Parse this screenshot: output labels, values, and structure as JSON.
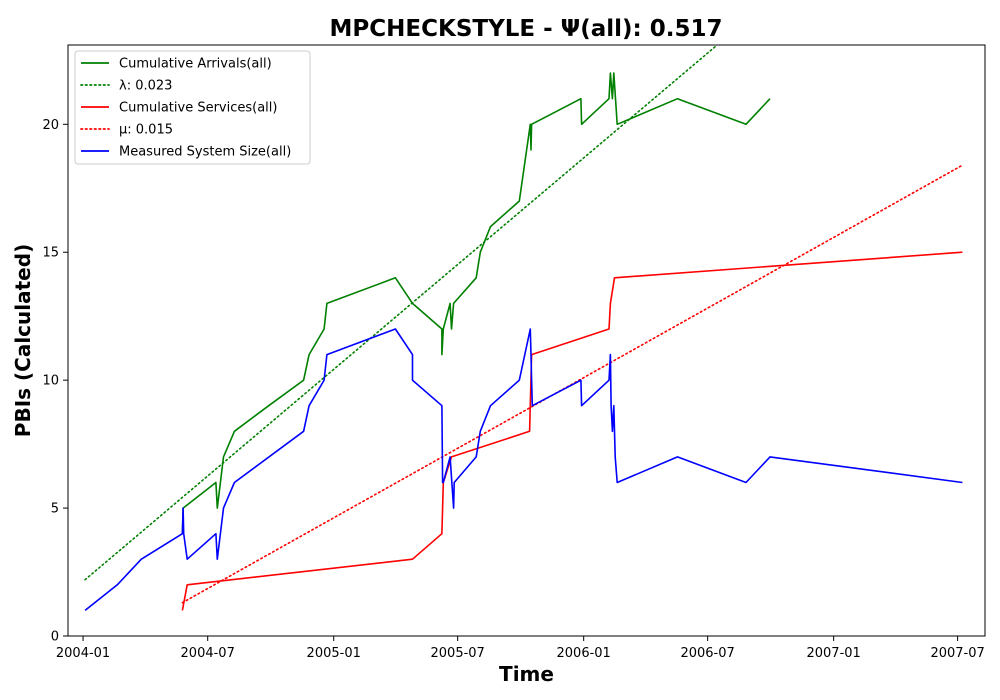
{
  "chart_data": {
    "type": "line",
    "title": "MPCHECKSTYLE -  Ψ(all): 0.517",
    "xlabel": "Time",
    "ylabel": "PBIs (Calculated)",
    "xlim": [
      "2003-12-10",
      "2007-08-10"
    ],
    "ylim": [
      0,
      23.1
    ],
    "grid": false,
    "legend_position": "top-left",
    "x_ticks": [
      "2004-01",
      "2004-07",
      "2005-01",
      "2005-07",
      "2006-01",
      "2006-07",
      "2007-01",
      "2007-07"
    ],
    "x_tick_dates": [
      "2004-01-01",
      "2004-07-01",
      "2005-01-01",
      "2005-07-01",
      "2006-01-01",
      "2006-07-01",
      "2007-01-01",
      "2007-07-01"
    ],
    "y_ticks": [
      0,
      5,
      10,
      15,
      20
    ],
    "y_tick_labels": [
      "0",
      "5",
      "10",
      "15",
      "20"
    ],
    "series": [
      {
        "name": "Cumulative Arrivals(all)",
        "color": "#008000",
        "style": "solid",
        "points": [
          [
            "2004-05-25",
            4.0
          ],
          [
            "2004-05-26",
            5.0
          ],
          [
            "2004-07-13",
            6.0
          ],
          [
            "2004-07-15",
            5.0
          ],
          [
            "2004-07-24",
            7.0
          ],
          [
            "2004-08-09",
            8.0
          ],
          [
            "2004-09-28",
            9.0
          ],
          [
            "2004-11-18",
            10.0
          ],
          [
            "2004-11-26",
            11.0
          ],
          [
            "2004-12-18",
            12.0
          ],
          [
            "2004-12-22",
            13.0
          ],
          [
            "2005-04-01",
            14.0
          ],
          [
            "2005-04-26",
            13.0
          ],
          [
            "2005-06-08",
            12.0
          ],
          [
            "2005-06-08",
            11.0
          ],
          [
            "2005-06-10",
            12.0
          ],
          [
            "2005-06-20",
            13.0
          ],
          [
            "2005-06-22",
            12.0
          ],
          [
            "2005-06-25",
            13.0
          ],
          [
            "2005-07-28",
            14.0
          ],
          [
            "2005-08-03",
            15.0
          ],
          [
            "2005-08-18",
            16.0
          ],
          [
            "2005-09-29",
            17.0
          ],
          [
            "2005-10-15",
            20.0
          ],
          [
            "2005-10-16",
            19.0
          ],
          [
            "2005-10-17",
            20.0
          ],
          [
            "2005-12-28",
            21.0
          ],
          [
            "2005-12-29",
            20.0
          ],
          [
            "2006-02-07",
            21.0
          ],
          [
            "2006-02-09",
            22.0
          ],
          [
            "2006-02-12",
            21.0
          ],
          [
            "2006-02-14",
            22.0
          ],
          [
            "2006-02-19",
            20.0
          ],
          [
            "2006-05-18",
            21.0
          ],
          [
            "2006-08-26",
            20.0
          ],
          [
            "2006-09-30",
            21.0
          ]
        ]
      },
      {
        "name": "λ: 0.023",
        "color": "#008000",
        "style": "dotted",
        "points": [
          [
            "2004-01-04",
            2.2
          ],
          [
            "2006-07-15",
            23.1
          ]
        ]
      },
      {
        "name": "Cumulative Services(all)",
        "color": "#ff0000",
        "style": "solid",
        "points": [
          [
            "2004-05-25",
            1.0
          ],
          [
            "2004-06-01",
            2.0
          ],
          [
            "2005-04-26",
            3.0
          ],
          [
            "2005-06-08",
            4.0
          ],
          [
            "2005-06-09",
            5.0
          ],
          [
            "2005-06-10",
            6.0
          ],
          [
            "2005-06-22",
            7.0
          ],
          [
            "2005-10-14",
            8.0
          ],
          [
            "2005-10-17",
            11.0
          ],
          [
            "2006-02-07",
            12.0
          ],
          [
            "2006-02-09",
            13.0
          ],
          [
            "2006-02-15",
            14.0
          ],
          [
            "2007-07-08",
            15.0
          ]
        ]
      },
      {
        "name": "μ: 0.015",
        "color": "#ff0000",
        "style": "dotted",
        "points": [
          [
            "2004-05-25",
            1.3
          ],
          [
            "2007-07-08",
            18.4
          ]
        ]
      },
      {
        "name": "Measured System Size(all)",
        "color": "#0000ff",
        "style": "solid",
        "points": [
          [
            "2004-01-04",
            1.0
          ],
          [
            "2004-02-20",
            2.0
          ],
          [
            "2004-03-26",
            3.0
          ],
          [
            "2004-05-25",
            4.0
          ],
          [
            "2004-05-26",
            5.0
          ],
          [
            "2004-05-27",
            4.0
          ],
          [
            "2004-06-01",
            3.0
          ],
          [
            "2004-07-13",
            4.0
          ],
          [
            "2004-07-15",
            3.0
          ],
          [
            "2004-07-24",
            5.0
          ],
          [
            "2004-08-09",
            6.0
          ],
          [
            "2004-11-18",
            8.0
          ],
          [
            "2004-11-26",
            9.0
          ],
          [
            "2004-12-18",
            10.0
          ],
          [
            "2004-12-22",
            11.0
          ],
          [
            "2005-04-01",
            12.0
          ],
          [
            "2005-04-26",
            11.0
          ],
          [
            "2005-04-26",
            10.0
          ],
          [
            "2005-06-08",
            9.0
          ],
          [
            "2005-06-09",
            6.0
          ],
          [
            "2005-06-10",
            6.0
          ],
          [
            "2005-06-20",
            7.0
          ],
          [
            "2005-06-25",
            5.0
          ],
          [
            "2005-06-26",
            6.0
          ],
          [
            "2005-07-28",
            7.0
          ],
          [
            "2005-08-03",
            8.0
          ],
          [
            "2005-08-18",
            9.0
          ],
          [
            "2005-09-29",
            10.0
          ],
          [
            "2005-10-15",
            12.0
          ],
          [
            "2005-10-16",
            11.0
          ],
          [
            "2005-10-17",
            10.0
          ],
          [
            "2005-10-18",
            9.0
          ],
          [
            "2005-12-28",
            10.0
          ],
          [
            "2005-12-29",
            9.0
          ],
          [
            "2006-02-07",
            10.0
          ],
          [
            "2006-02-09",
            11.0
          ],
          [
            "2006-02-10",
            9.0
          ],
          [
            "2006-02-12",
            8.0
          ],
          [
            "2006-02-14",
            9.0
          ],
          [
            "2006-02-15",
            8.0
          ],
          [
            "2006-02-16",
            7.0
          ],
          [
            "2006-02-19",
            6.0
          ],
          [
            "2006-05-18",
            7.0
          ],
          [
            "2006-08-26",
            6.0
          ],
          [
            "2006-09-30",
            7.0
          ],
          [
            "2007-07-08",
            6.0
          ]
        ]
      }
    ]
  }
}
